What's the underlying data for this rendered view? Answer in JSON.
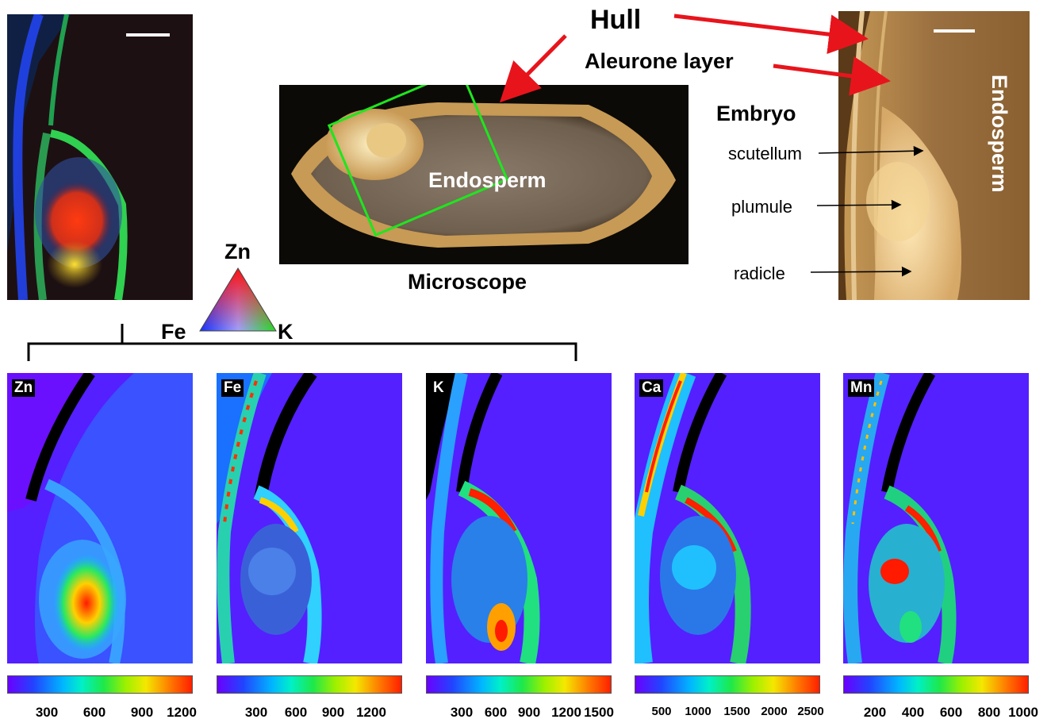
{
  "annotations": {
    "hull": "Hull",
    "aleurone_layer": "Aleurone layer",
    "embryo": "Embryo",
    "endosperm_vertical": "Endosperm",
    "endosperm_center": "Endosperm",
    "scutellum": "scutellum",
    "plumule": "plumule",
    "radicle": "radicle",
    "microscope": "Microscope"
  },
  "legend_triangle": {
    "top": "Zn",
    "left": "Fe",
    "right": "K"
  },
  "maps": [
    {
      "element": "Zn",
      "ticks": [
        "300",
        "600",
        "900",
        "1200"
      ]
    },
    {
      "element": "Fe",
      "ticks": [
        "300",
        "600",
        "900",
        "1200"
      ]
    },
    {
      "element": "K",
      "ticks": [
        "300",
        "600",
        "900",
        "1200",
        "1500"
      ]
    },
    {
      "element": "Ca",
      "ticks": [
        "500",
        "1000",
        "1500",
        "2000",
        "2500"
      ]
    },
    {
      "element": "Mn",
      "ticks": [
        "200",
        "400",
        "600",
        "800",
        "1000"
      ]
    }
  ],
  "colors": {
    "arrow": "#e8141c",
    "box": "#1ee61e",
    "colormap_low": "#6a00ff",
    "colormap_high": "#ff1f00"
  }
}
